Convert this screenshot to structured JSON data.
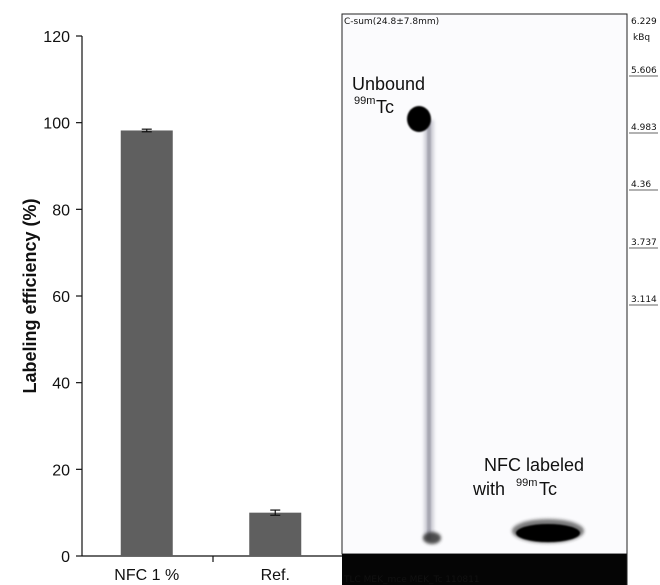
{
  "chart_data": {
    "type": "bar",
    "categories": [
      "NFC 1 %",
      "Ref."
    ],
    "values": [
      98.2,
      10.0
    ],
    "errors": [
      0.3,
      0.6
    ],
    "ylabel": "Labeling efficiency (%)",
    "ylim": [
      0,
      120
    ],
    "yticks": [
      0,
      20,
      40,
      60,
      80,
      100,
      120
    ],
    "bar_color": "#5f5f5f",
    "grid": false
  },
  "scan_panel": {
    "header": "C-sum(24.8±7.8mm)",
    "footer": "TLC MEK_mce MEK_Tc 110811",
    "scale_unit": "kBq",
    "scale_values": [
      "6.229",
      "5.606",
      "4.983",
      "4.36",
      "3.737",
      "3.114"
    ],
    "unbound_label": "Unbound",
    "unbound_sup": "99m",
    "unbound_suffix": "Tc",
    "labeled_line1": "NFC labeled",
    "labeled_prefix": "with ",
    "labeled_sup": "99m",
    "labeled_suffix": "Tc"
  }
}
